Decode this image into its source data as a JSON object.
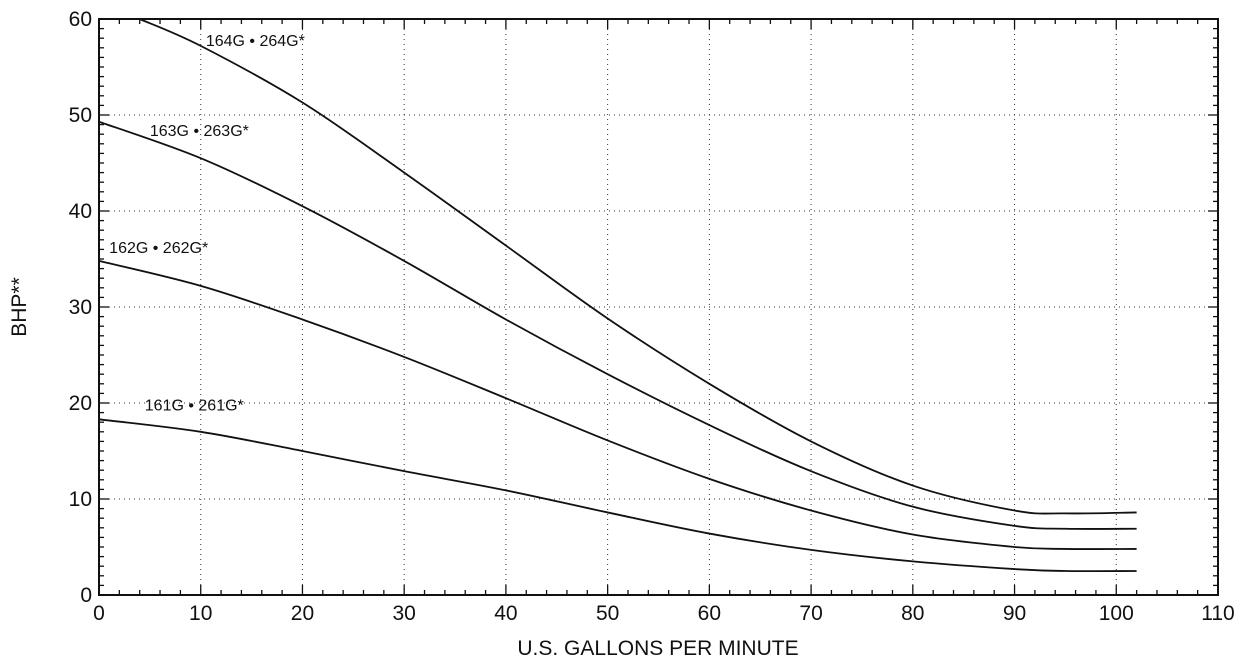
{
  "chart_data": {
    "type": "line",
    "title": "",
    "xlabel": "U.S. GALLONS PER MINUTE",
    "ylabel": "BHP**",
    "xlim": [
      0,
      110
    ],
    "ylim": [
      0,
      60
    ],
    "xticks": [
      0,
      10,
      20,
      30,
      40,
      50,
      60,
      70,
      80,
      90,
      100,
      110
    ],
    "yticks": [
      0,
      10,
      20,
      30,
      40,
      50,
      60
    ],
    "grid": true,
    "legend": "none",
    "series": [
      {
        "name": "161G • 261G*",
        "x": [
          0,
          10,
          20,
          30,
          40,
          50,
          60,
          70,
          80,
          90,
          95,
          102
        ],
        "y": [
          18.3,
          17.0,
          15.0,
          12.9,
          10.9,
          8.6,
          6.4,
          4.7,
          3.5,
          2.7,
          2.5,
          2.5
        ]
      },
      {
        "name": "162G • 262G*",
        "x": [
          0,
          10,
          20,
          30,
          40,
          50,
          60,
          70,
          80,
          90,
          95,
          102
        ],
        "y": [
          34.8,
          32.2,
          28.7,
          24.8,
          20.5,
          16.1,
          12.1,
          8.8,
          6.3,
          5.0,
          4.8,
          4.8
        ]
      },
      {
        "name": "163G • 263G*",
        "x": [
          0,
          10,
          20,
          30,
          40,
          50,
          60,
          70,
          80,
          90,
          95,
          102
        ],
        "y": [
          49.3,
          45.5,
          40.5,
          34.8,
          28.7,
          23.0,
          17.7,
          12.9,
          9.2,
          7.2,
          6.9,
          6.9
        ]
      },
      {
        "name": "164G • 264G*",
        "x": [
          4,
          10,
          20,
          30,
          40,
          50,
          60,
          70,
          80,
          90,
          95,
          102
        ],
        "y": [
          60.0,
          57.2,
          51.3,
          44.0,
          36.4,
          28.8,
          22.0,
          16.0,
          11.4,
          8.8,
          8.5,
          8.6
        ]
      }
    ]
  }
}
